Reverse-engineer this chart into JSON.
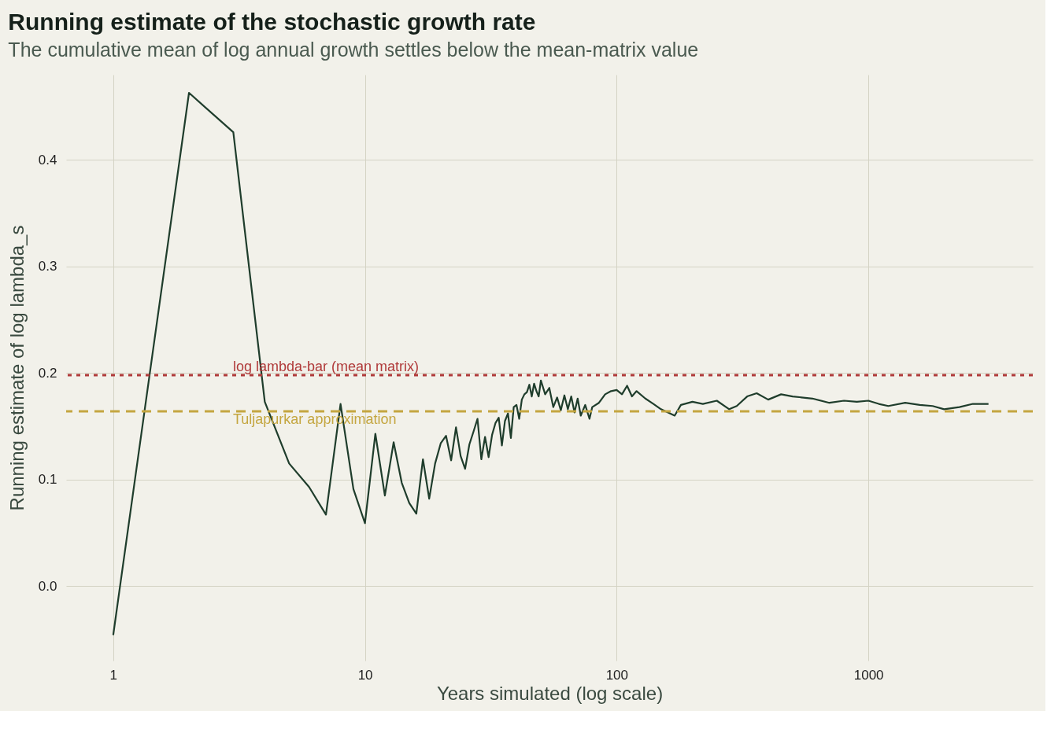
{
  "chart_data": {
    "type": "line",
    "title": "Running estimate of the stochastic growth rate",
    "subtitle": "The cumulative mean of log annual growth settles below the mean-matrix value",
    "xlabel": "Years simulated (log scale)",
    "ylabel": "Running estimate of log lambda_s",
    "x": [
      1,
      2,
      3,
      4,
      5,
      6,
      7,
      8,
      9,
      10,
      11,
      12,
      13,
      14,
      15,
      16,
      17,
      18,
      19,
      20,
      21,
      22,
      23,
      24,
      25,
      26,
      27,
      28,
      29,
      30,
      31,
      32,
      33,
      34,
      35,
      36,
      37,
      38,
      39,
      40,
      41,
      42,
      43,
      44,
      45,
      46,
      47,
      48,
      49,
      50,
      52,
      54,
      56,
      58,
      60,
      62,
      64,
      66,
      68,
      70,
      72,
      75,
      78,
      80,
      85,
      90,
      95,
      100,
      105,
      110,
      115,
      120,
      130,
      140,
      150,
      160,
      170,
      180,
      200,
      220,
      250,
      280,
      300,
      330,
      360,
      400,
      450,
      500,
      600,
      700,
      800,
      900,
      1000,
      1100,
      1200,
      1400,
      1600,
      1800,
      2000,
      2300,
      2600,
      3000
    ],
    "series": [
      {
        "color": "#1f3d2c",
        "values": [
          -0.046,
          0.463,
          0.426,
          0.173,
          0.115,
          0.093,
          0.067,
          0.171,
          0.091,
          0.059,
          0.143,
          0.085,
          0.135,
          0.097,
          0.078,
          0.068,
          0.119,
          0.082,
          0.115,
          0.134,
          0.141,
          0.118,
          0.149,
          0.122,
          0.11,
          0.133,
          0.145,
          0.157,
          0.119,
          0.14,
          0.121,
          0.142,
          0.153,
          0.158,
          0.132,
          0.155,
          0.162,
          0.139,
          0.168,
          0.17,
          0.157,
          0.175,
          0.18,
          0.182,
          0.189,
          0.178,
          0.19,
          0.183,
          0.178,
          0.193,
          0.18,
          0.186,
          0.168,
          0.177,
          0.165,
          0.179,
          0.166,
          0.178,
          0.163,
          0.176,
          0.16,
          0.17,
          0.157,
          0.168,
          0.172,
          0.18,
          0.183,
          0.184,
          0.18,
          0.188,
          0.178,
          0.183,
          0.176,
          0.171,
          0.166,
          0.163,
          0.16,
          0.17,
          0.173,
          0.171,
          0.174,
          0.166,
          0.169,
          0.178,
          0.181,
          0.175,
          0.18,
          0.178,
          0.176,
          0.172,
          0.174,
          0.173,
          0.174,
          0.171,
          0.169,
          0.172,
          0.17,
          0.169,
          0.166,
          0.168,
          0.171,
          0.171
        ]
      }
    ],
    "log": "x",
    "xlim": [
      0.65,
      4500
    ],
    "xticks": [
      1,
      10,
      100,
      1000
    ],
    "ylim": [
      -0.07,
      0.48
    ],
    "yticks": [
      {
        "value": 0,
        "label": "0.0"
      },
      0.1,
      0.2,
      0.3,
      0.4
    ],
    "grid": true,
    "ref_lines": [
      {
        "axis": "y",
        "value": 0.198,
        "label": "log lambda-bar (mean matrix)",
        "color": "#b03a3a",
        "line_style": "dotted"
      },
      {
        "axis": "y",
        "value": 0.164,
        "label": "Tuljapurkar approximation",
        "color": "#c4a640",
        "line_style": "dashed"
      }
    ]
  }
}
